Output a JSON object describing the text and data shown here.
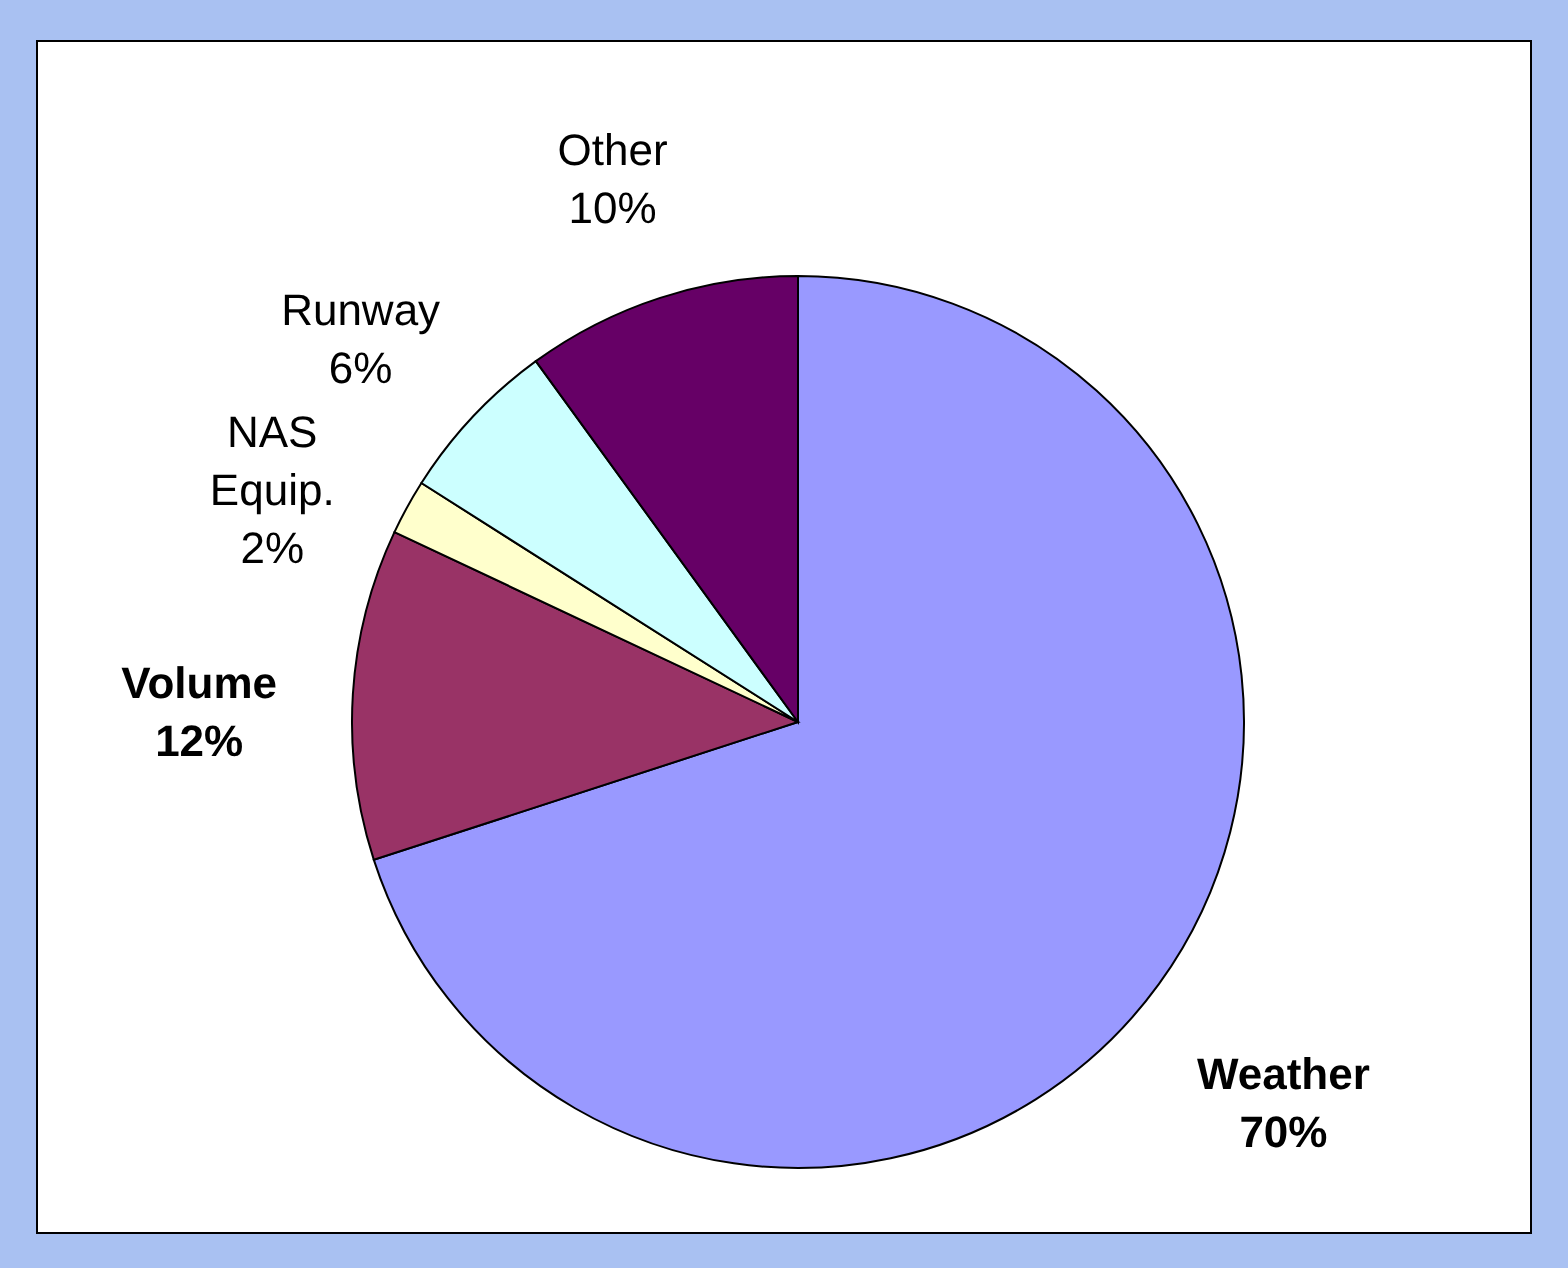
{
  "chart_data": {
    "type": "pie",
    "categories": [
      "Weather",
      "Volume",
      "NAS Equip.",
      "Runway",
      "Other"
    ],
    "values": [
      70,
      12,
      2,
      6,
      10
    ],
    "value_labels": [
      "70%",
      "12%",
      "2%",
      "6%",
      "10%"
    ],
    "colors": [
      "#9999ff",
      "#993366",
      "#ffffcc",
      "#ccffff",
      "#660066"
    ]
  }
}
